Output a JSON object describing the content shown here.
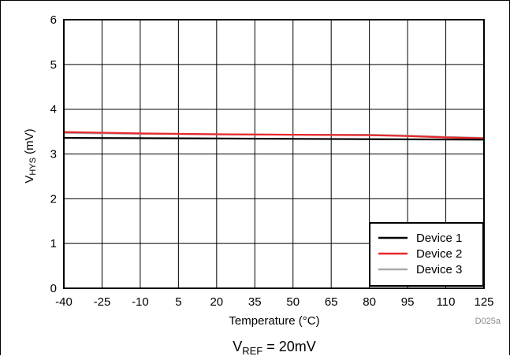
{
  "chart_data": {
    "type": "line",
    "xlabel": "Temperature (°C)",
    "ylabel": {
      "main": "V",
      "sub": "HYS",
      "unit": " (mV)"
    },
    "x_ticks": [
      -40,
      -25,
      -10,
      5,
      20,
      35,
      50,
      65,
      80,
      95,
      110,
      125
    ],
    "y_ticks": [
      0,
      1,
      2,
      3,
      4,
      5,
      6
    ],
    "xlim": [
      -40,
      125
    ],
    "ylim": [
      0,
      6
    ],
    "grid": true,
    "legend_position": "bottom-right",
    "series": [
      {
        "name": "Device 1",
        "color": "#000000",
        "x": [
          -40,
          125
        ],
        "y": [
          3.36,
          3.32
        ]
      },
      {
        "name": "Device 2",
        "color": "#e8282c",
        "x": [
          -40,
          -10,
          20,
          50,
          80,
          95,
          110,
          125
        ],
        "y": [
          3.49,
          3.46,
          3.44,
          3.43,
          3.42,
          3.4,
          3.37,
          3.35
        ]
      },
      {
        "name": "Device 3",
        "color": "#a9a9a9",
        "x": [
          -40,
          -10,
          20,
          50,
          80,
          95,
          110,
          125
        ],
        "y": [
          3.47,
          3.45,
          3.44,
          3.43,
          3.43,
          3.41,
          3.38,
          3.36
        ]
      }
    ],
    "figure_id": "D025a",
    "caption": {
      "main": "V",
      "sub": "REF",
      "rest": " = 20mV"
    }
  }
}
